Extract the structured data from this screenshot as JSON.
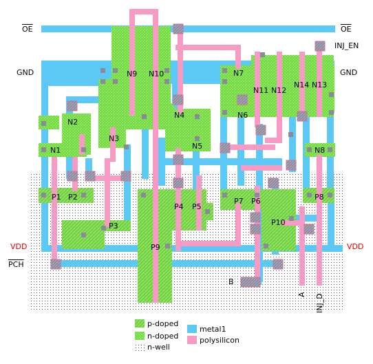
{
  "signals": {
    "oe_left": "OE",
    "oe_right": "OE",
    "gnd_left": "GND",
    "gnd_right": "GND",
    "inj_en": "INJ_EN",
    "vdd_left": "VDD",
    "vdd_right": "VDD",
    "pch": "PCH",
    "b": "B",
    "a": "A",
    "inj_d": "INJ_D"
  },
  "transistors": {
    "n": [
      "N1",
      "N2",
      "N3",
      "N4",
      "N5",
      "N6",
      "N7",
      "N8",
      "N9",
      "N10",
      "N11",
      "N12",
      "N13",
      "N14"
    ],
    "p": [
      "P1",
      "P2",
      "P3",
      "P4",
      "P5",
      "P6",
      "P7",
      "P8",
      "P9",
      "P10"
    ]
  },
  "legend": {
    "p_doped": "p-doped",
    "n_doped": "n-doped",
    "n_well": "n-well",
    "metal1": "metal1",
    "polysilicon": "polysilicon"
  },
  "colors": {
    "doped": "#77dd44",
    "metal1": "#5bc8f5",
    "polysilicon": "#f79ac4",
    "contact": "#8a8a9a",
    "vdd_label": "#e00000"
  }
}
